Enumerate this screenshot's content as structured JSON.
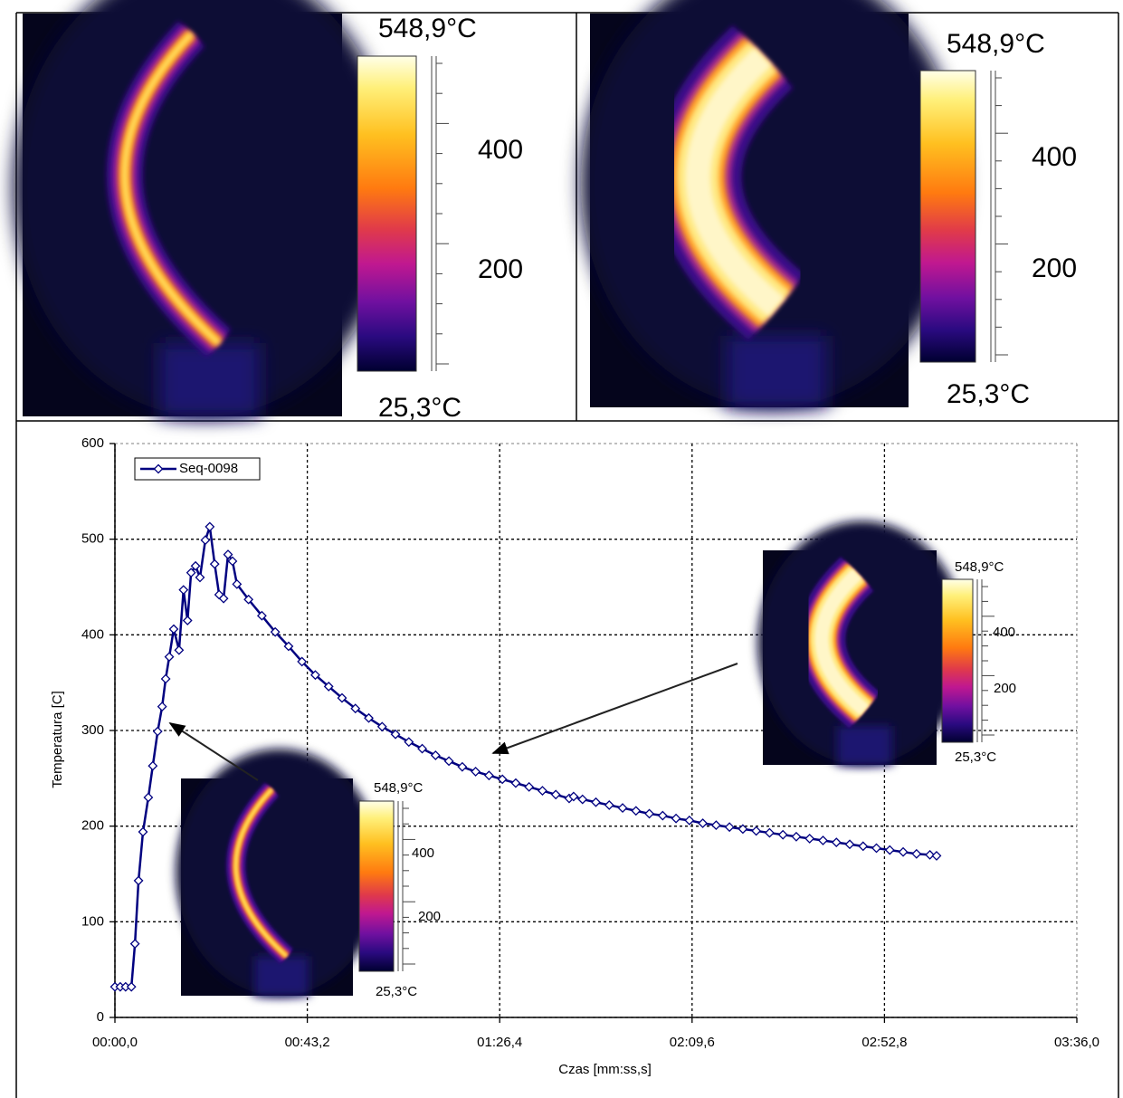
{
  "thermal_images": [
    {
      "max_label": "548,9°C",
      "scale_labels": [
        "400",
        "200"
      ],
      "min_label": "25,3°C"
    },
    {
      "max_label": "548,9°C",
      "scale_labels": [
        "400",
        "200"
      ],
      "min_label": "25,3°C"
    },
    {
      "max_label": "548,9°C",
      "scale_labels": [
        "400",
        "200"
      ],
      "min_label": "25,3°C"
    },
    {
      "max_label": "548,9°C",
      "scale_labels": [
        "400",
        "200"
      ],
      "min_label": "25,3°C"
    }
  ],
  "chart_data": {
    "type": "line",
    "x_label": "Czas [mm:ss,s]",
    "y_label": "Temperatura [C]",
    "x": [
      0,
      1.2,
      2.4,
      3.7,
      4.5,
      5.3,
      6.3,
      7.5,
      8.5,
      9.6,
      10.6,
      11.4,
      12.2,
      13.2,
      14.4,
      15.4,
      16.3,
      17.1,
      18.1,
      19.1,
      20.3,
      21.3,
      22.4,
      23.4,
      24.4,
      25.4,
      26.4,
      27.4,
      30,
      33,
      36,
      39,
      42,
      45,
      48,
      51,
      54,
      57,
      60,
      63,
      66,
      69,
      72,
      75,
      78,
      81,
      84,
      87,
      90,
      93,
      96,
      99,
      102,
      103,
      105,
      108,
      111,
      114,
      117,
      120,
      123,
      126,
      129,
      132,
      135,
      138,
      141,
      144,
      147,
      150,
      153,
      156,
      159,
      162,
      165,
      168,
      171,
      174,
      177,
      180,
      183,
      184.5
    ],
    "series": [
      {
        "name": "Seq-0098",
        "color": "#000080",
        "values": [
          32,
          32,
          32,
          32,
          77,
          143,
          194,
          230,
          263,
          299,
          325,
          354,
          377,
          406,
          384,
          447,
          415,
          465,
          472,
          460,
          499,
          513,
          474,
          442,
          438,
          484,
          477,
          453,
          437,
          420,
          403,
          388,
          372,
          358,
          346,
          334,
          323,
          313,
          304,
          296,
          288,
          281,
          274,
          268,
          262,
          257,
          253,
          249,
          245,
          241,
          237,
          233,
          229,
          231,
          228,
          225,
          222,
          219,
          216,
          213,
          211,
          208,
          206,
          203,
          201,
          199,
          197,
          195,
          193,
          191,
          189,
          187,
          185,
          183,
          181,
          179,
          177,
          175,
          173,
          171,
          170,
          169
        ]
      }
    ],
    "xlim": [
      0,
      216
    ],
    "xticks": [
      {
        "value": 0,
        "label": "00:00,0"
      },
      {
        "value": 43.2,
        "label": "00:43,2"
      },
      {
        "value": 86.4,
        "label": "01:26,4"
      },
      {
        "value": 129.6,
        "label": "02:09,6"
      },
      {
        "value": 172.8,
        "label": "02:52,8"
      },
      {
        "value": 216,
        "label": "03:36,0"
      }
    ],
    "ylim": [
      0,
      600
    ],
    "yticks": [
      0,
      100,
      200,
      300,
      400,
      500,
      600
    ],
    "grid": true,
    "legend": "upper left"
  }
}
